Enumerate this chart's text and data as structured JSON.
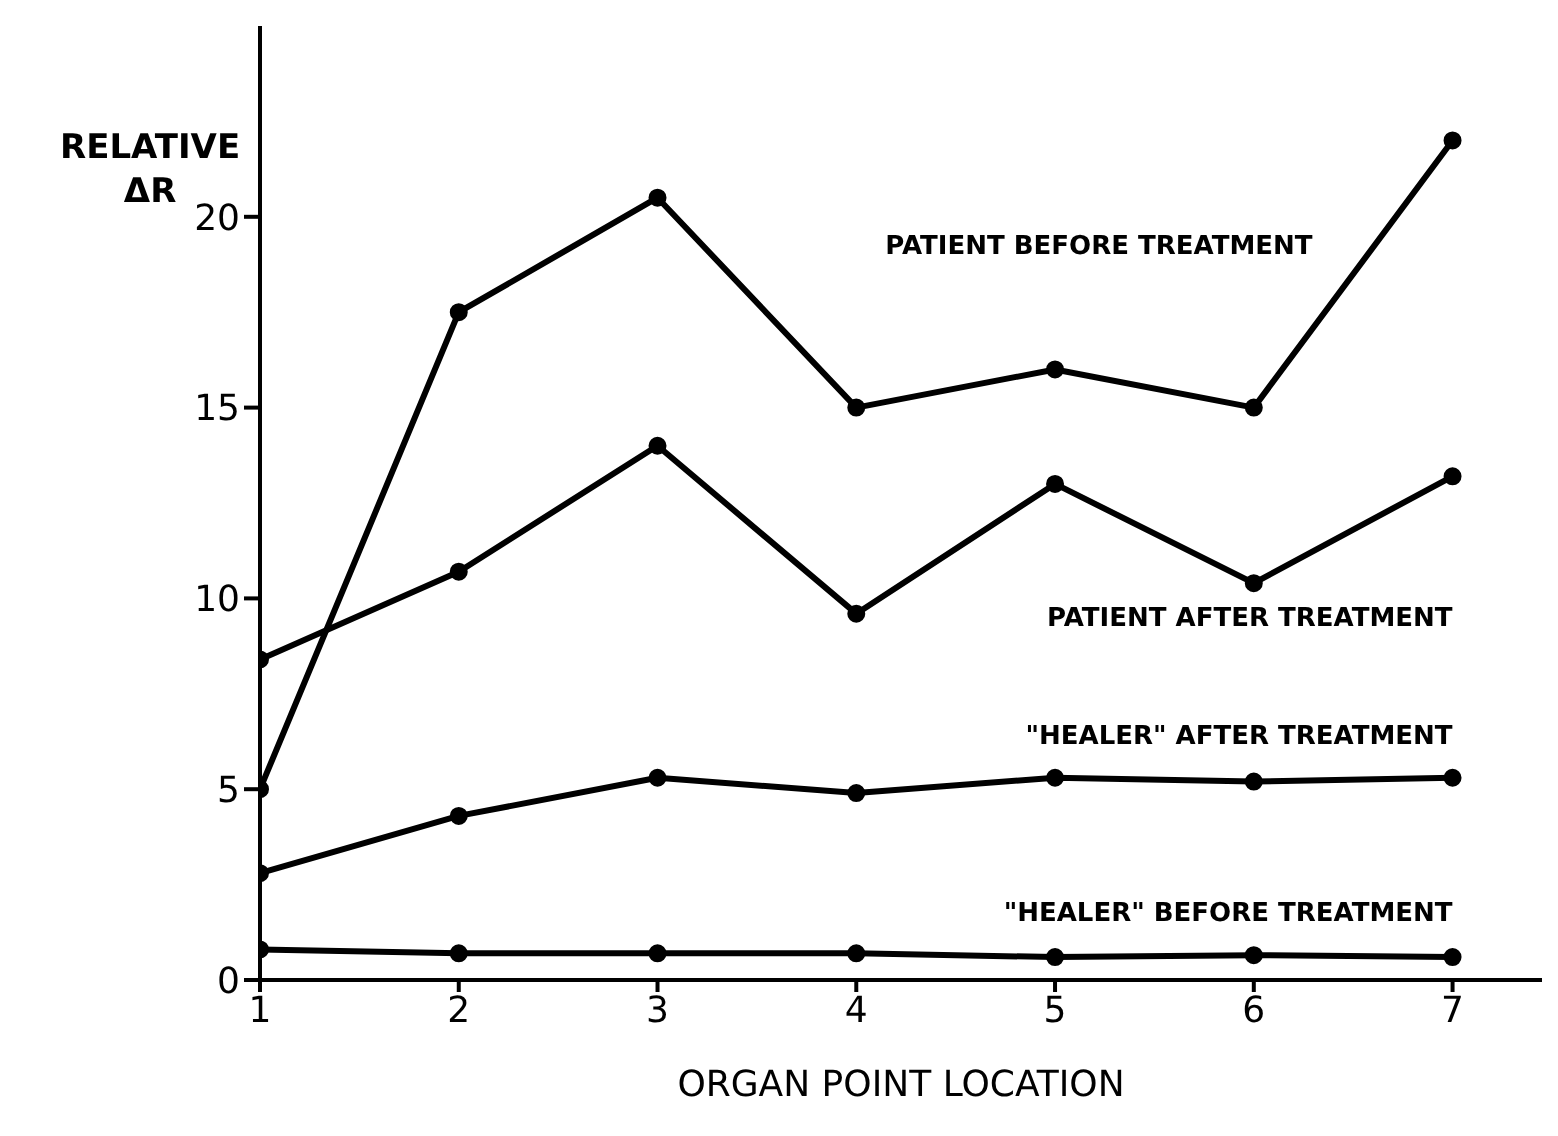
{
  "chart_data": {
    "type": "line",
    "xlabel": "ORGAN POINT LOCATION",
    "ylabel": "RELATIVE ΔR",
    "x": [
      1,
      2,
      3,
      4,
      5,
      6,
      7
    ],
    "xlim": [
      1,
      7.45
    ],
    "xticks": [
      1,
      2,
      3,
      4,
      5,
      6,
      7
    ],
    "ylim": [
      0,
      25
    ],
    "yticks": [
      0,
      5,
      10,
      15,
      20
    ],
    "grid": false,
    "marker": "circle",
    "line_style": "solid",
    "series": [
      {
        "name": "PATIENT BEFORE TREATMENT",
        "color": "#000000",
        "values": [
          5.0,
          17.5,
          20.5,
          15.0,
          16.0,
          15.0,
          22.0
        ]
      },
      {
        "name": "PATIENT AFTER TREATMENT",
        "color": "#000000",
        "values": [
          8.4,
          10.7,
          14.0,
          9.6,
          13.0,
          10.4,
          13.2
        ]
      },
      {
        "name": "\"HEALER\" AFTER TREATMENT",
        "color": "#000000",
        "values": [
          2.8,
          4.3,
          5.3,
          4.9,
          5.3,
          5.2,
          5.3
        ]
      },
      {
        "name": "\"HEALER\" BEFORE TREATMENT",
        "color": "#000000",
        "values": [
          0.8,
          0.7,
          0.7,
          0.7,
          0.6,
          0.65,
          0.6
        ]
      }
    ]
  }
}
